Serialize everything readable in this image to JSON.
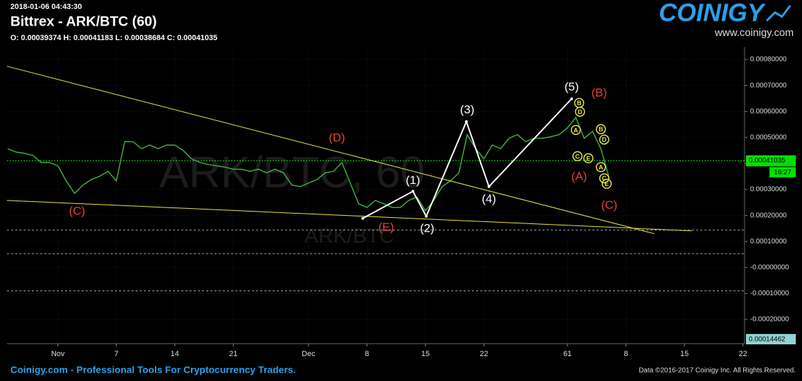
{
  "chart_data": {
    "type": "line",
    "timestamp": "2018-01-06 04:43:30",
    "title": "Bittrex - ARK/BTC (60)",
    "subtitle": "O: 0.00039374 H: 0.00041183 L: 0.00038684 C: 0.00041035",
    "watermark": "ARK/BTC, 60",
    "watermark_sub": "ARK/BTC",
    "logo": "COINIGY",
    "logo_url": "www.coinigy.com",
    "footer_left": "Coinigy.com - Professional Tools For Cryptocurrency Traders.",
    "footer_right": "Data ©2016-2017 Coinigy Inc. All Rights Reserved.",
    "x": [
      -6,
      -5,
      -4,
      -3,
      -2,
      -1,
      0,
      1,
      2,
      3,
      4,
      5,
      6,
      7,
      8,
      9,
      10,
      11,
      12,
      13,
      14,
      15,
      16,
      17,
      18,
      19,
      20,
      21,
      22,
      23,
      24,
      25,
      26,
      27,
      28,
      29,
      30,
      31,
      32,
      33,
      34,
      35,
      36,
      37,
      38,
      39,
      40,
      41,
      42,
      43,
      44,
      45,
      46,
      47,
      48,
      49,
      50,
      51,
      52,
      53,
      54,
      55,
      56,
      57,
      58,
      59,
      60,
      61,
      62,
      63,
      64,
      65,
      66
    ],
    "series": [
      {
        "name": "ARK/BTC",
        "color": "#3fae3f",
        "values": [
          0.000457,
          0.000444,
          0.000439,
          0.000431,
          0.000404,
          0.000404,
          0.000391,
          0.000333,
          0.000285,
          0.000317,
          0.000338,
          0.000351,
          0.00037,
          0.000333,
          0.000484,
          0.000484,
          0.000457,
          0.000471,
          0.000457,
          0.000471,
          0.000471,
          0.00045,
          0.000418,
          0.000404,
          0.000396,
          0.000391,
          0.000386,
          0.000378,
          0.000378,
          0.00037,
          0.000378,
          0.000364,
          0.000378,
          0.000364,
          0.000317,
          0.000311,
          0.000325,
          0.000338,
          0.000364,
          0.00037,
          0.000404,
          0.000325,
          0.000245,
          0.000231,
          0.000258,
          0.000245,
          0.000231,
          0.000231,
          0.000258,
          0.000271,
          0.000218,
          0.000258,
          0.000311,
          0.000333,
          0.000364,
          0.000511,
          0.000457,
          0.000418,
          0.000471,
          0.000457,
          0.000497,
          0.000511,
          0.000484,
          0.000497,
          0.000497,
          0.000503,
          0.000511,
          0.000537,
          0.000577,
          0.000497,
          0.000524,
          0.000457,
          0.000343
        ]
      }
    ],
    "xlim": [
      -6.1,
      82.2
    ],
    "xticks": [
      {
        "value": 0,
        "label": "Nov"
      },
      7,
      14,
      21,
      {
        "value": 30,
        "label": "Dec"
      },
      {
        "value": 37,
        "label": "8"
      },
      {
        "value": 44,
        "label": "15"
      },
      {
        "value": 51,
        "label": "22"
      },
      61,
      {
        "value": 68,
        "label": "8"
      },
      {
        "value": 75,
        "label": "15"
      },
      {
        "value": 82,
        "label": "22"
      }
    ],
    "ylim": [
      -0.000293,
      0.000848
    ],
    "yticks": [
      {
        "value": 0.0008,
        "label": "0.00080000"
      },
      {
        "value": 0.0007,
        "label": "0.00070000"
      },
      {
        "value": 0.0006,
        "label": "0.00060000"
      },
      {
        "value": 0.0005,
        "label": "0.00050000"
      },
      {
        "value": 0.0004,
        "label": "0.00040000"
      },
      {
        "value": 0.0003,
        "label": "0.00030000"
      },
      {
        "value": 0.0002,
        "label": "0.00020000"
      },
      {
        "value": 0.0001,
        "label": "0.00010000"
      },
      {
        "value": 0,
        "label": "-0.00000000"
      },
      {
        "value": -0.0001,
        "label": "-0.00010000"
      },
      {
        "value": -0.0002,
        "label": "-0.00020000"
      }
    ],
    "grid": true,
    "last_price": {
      "value": 0.00041035,
      "label": "0.00041035",
      "time": "16:27",
      "color": "#00e000"
    },
    "volume_label": "0.00014462",
    "levels": [
      0.000144,
      5.3e-05,
      -9e-05
    ],
    "trendlines": [
      {
        "color": "#e8e84a",
        "x": [
          -6.1,
          71.4
        ],
        "y": [
          0.000774,
          0.00013
        ]
      },
      {
        "color": "#e8e84a",
        "x": [
          -6.1,
          75.9
        ],
        "y": [
          0.000258,
          0.000141
        ]
      },
      {
        "color": "#ffffff",
        "x": [
          36.5,
          42.5,
          44.1,
          48.9,
          51.6,
          61.5
        ],
        "y": [
          0.000189,
          0.000293,
          0.000197,
          0.000561,
          0.000311,
          0.000649
        ]
      }
    ],
    "annotations": [
      {
        "text": "(C)",
        "color": "#e04040",
        "x": 2.3,
        "y": 0.000215
      },
      {
        "text": "(D)",
        "color": "#e04040",
        "x": 33.4,
        "y": 0.000497
      },
      {
        "text": "(E)",
        "color": "#e04040",
        "x": 39.3,
        "y": 0.000152
      },
      {
        "text": "(1)",
        "color": "#ffffff",
        "x": 42.5,
        "y": 0.000333
      },
      {
        "text": "(2)",
        "color": "#ffffff",
        "x": 44.2,
        "y": 0.000149
      },
      {
        "text": "(3)",
        "color": "#ffffff",
        "x": 49.0,
        "y": 0.000604
      },
      {
        "text": "(4)",
        "color": "#ffffff",
        "x": 51.6,
        "y": 0.000261
      },
      {
        "text": "(5)",
        "color": "#ffffff",
        "x": 61.5,
        "y": 0.000692
      },
      {
        "text": "(B)",
        "color": "#e04040",
        "x": 64.8,
        "y": 0.00067
      },
      {
        "text": "(A)",
        "color": "#e04040",
        "x": 62.4,
        "y": 0.000348
      },
      {
        "text": "(C)",
        "color": "#e04040",
        "x": 66.0,
        "y": 0.000237
      }
    ],
    "markers": [
      {
        "text": "B",
        "x": 62.4,
        "y": 0.000633
      },
      {
        "text": "D",
        "x": 62.5,
        "y": 0.000599
      },
      {
        "text": "A",
        "x": 62.0,
        "y": 0.000529
      },
      {
        "text": "C",
        "x": 62.2,
        "y": 0.000428
      },
      {
        "text": "E",
        "x": 63.5,
        "y": 0.00042
      },
      {
        "text": "B",
        "x": 65.0,
        "y": 0.000532
      },
      {
        "text": "D",
        "x": 65.4,
        "y": 0.000492
      },
      {
        "text": "A",
        "x": 65.0,
        "y": 0.000386
      },
      {
        "text": "C",
        "x": 65.4,
        "y": 0.000343
      },
      {
        "text": "E",
        "x": 65.7,
        "y": 0.000322
      }
    ]
  }
}
